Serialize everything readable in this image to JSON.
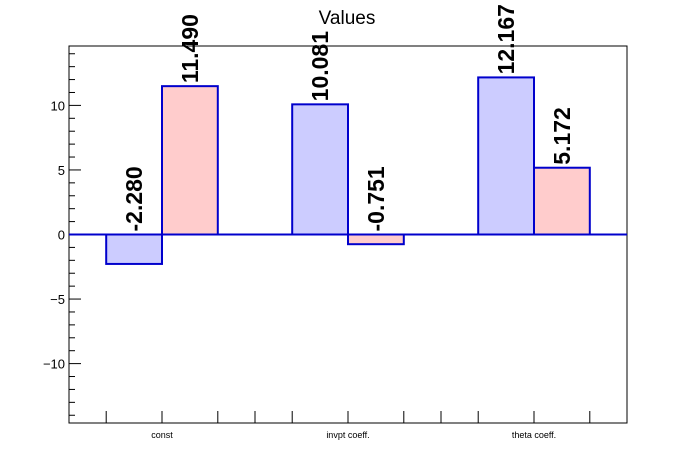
{
  "chart_data": {
    "type": "bar",
    "title": "Values",
    "xlabel": "",
    "ylabel": "",
    "categories": [
      "const",
      "invpt coeff.",
      "theta coeff."
    ],
    "series": [
      {
        "values": [
          -2.28,
          10.081,
          12.167
        ],
        "labels": [
          "-2.280",
          "10.081",
          "12.167"
        ],
        "color": "#ccccff"
      },
      {
        "values": [
          11.49,
          -0.751,
          5.172
        ],
        "labels": [
          "11.490",
          "-0.751",
          "5.172"
        ],
        "color": "#ffcccc"
      }
    ],
    "ylim": [
      -14.6,
      14.6
    ],
    "y_ticks": [
      -10,
      -5,
      0,
      5,
      10
    ],
    "y_tick_labels": [
      "−10",
      "−5",
      "0",
      "5",
      "10"
    ],
    "grid": false,
    "outline_color": "#0000cc",
    "zero_line_color": "#0000cc"
  }
}
